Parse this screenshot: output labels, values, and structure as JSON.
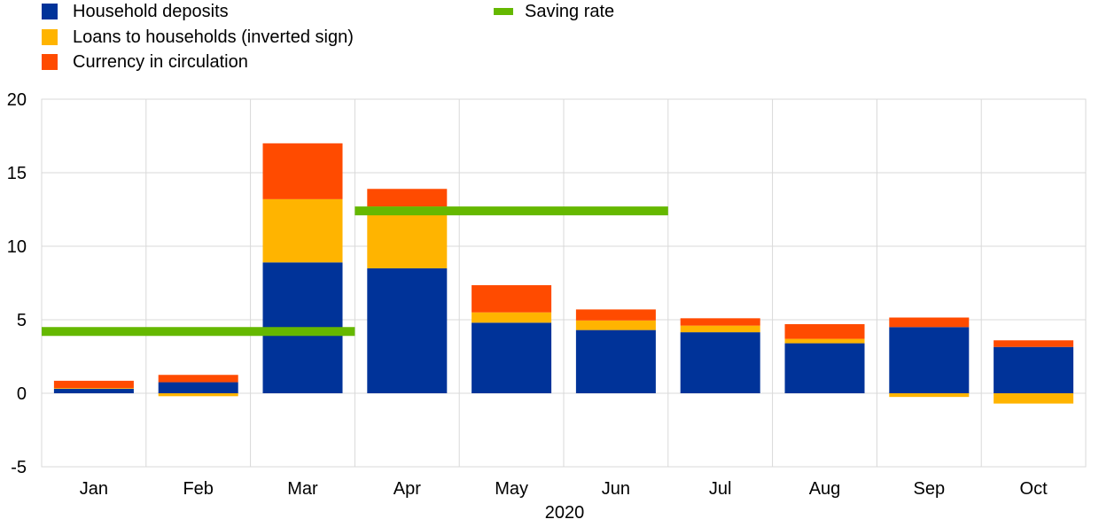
{
  "legend": {
    "items": [
      {
        "label": "Household deposits",
        "color": "#003399"
      },
      {
        "label": "Loans to households (inverted sign)",
        "color": "#ffb400"
      },
      {
        "label": "Currency in circulation",
        "color": "#ff4b00"
      },
      {
        "label": "Saving rate",
        "color": "#65b800"
      }
    ]
  },
  "chart_data": {
    "type": "bar",
    "stacked": true,
    "categories": [
      "Jan",
      "Feb",
      "Mar",
      "Apr",
      "May",
      "Jun",
      "Jul",
      "Aug",
      "Sep",
      "Oct"
    ],
    "xlabel": "2020",
    "ylim": [
      -5,
      20
    ],
    "yticks": [
      -5,
      0,
      5,
      10,
      15,
      20
    ],
    "grid": true,
    "legend_position": "top-left",
    "series": [
      {
        "name": "Household deposits",
        "color": "#003399",
        "values": [
          0.3,
          0.75,
          8.9,
          8.5,
          4.8,
          4.3,
          4.15,
          3.4,
          4.5,
          3.15
        ]
      },
      {
        "name": "Loans to households (inverted sign)",
        "color": "#ffb400",
        "values": [
          0.05,
          -0.2,
          4.3,
          4.2,
          0.7,
          0.65,
          0.45,
          0.3,
          -0.25,
          -0.7
        ]
      },
      {
        "name": "Currency in circulation",
        "color": "#ff4b00",
        "values": [
          0.5,
          0.5,
          3.8,
          1.2,
          1.85,
          0.75,
          0.5,
          1.0,
          0.65,
          0.45
        ]
      }
    ],
    "line_series": {
      "name": "Saving rate",
      "color": "#65b800",
      "segments": [
        {
          "from": "Jan",
          "to": "Mar",
          "value": 4.2
        },
        {
          "from": "Apr",
          "to": "Jun",
          "value": 12.4
        }
      ]
    }
  }
}
